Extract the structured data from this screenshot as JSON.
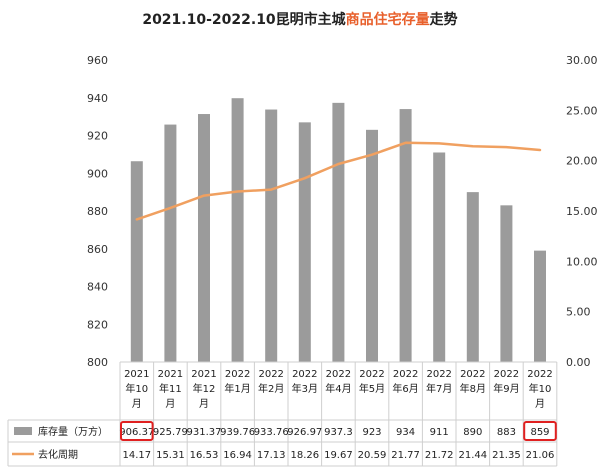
{
  "chart_data": {
    "type": "bar",
    "title_prefix": "2021.10-2022.10昆明市主城",
    "title_highlight": "商品住宅存量",
    "title_suffix": "走势",
    "categories": [
      [
        "2021",
        "年10",
        "月"
      ],
      [
        "2021",
        "年11",
        "月"
      ],
      [
        "2021",
        "年12",
        "月"
      ],
      [
        "2022",
        "年1月"
      ],
      [
        "2022",
        "年2月"
      ],
      [
        "2022",
        "年3月"
      ],
      [
        "2022",
        "年4月"
      ],
      [
        "2022",
        "年5月"
      ],
      [
        "2022",
        "年6月"
      ],
      [
        "2022",
        "年7月"
      ],
      [
        "2022",
        "年8月"
      ],
      [
        "2022",
        "年9月"
      ],
      [
        "2022",
        "年10",
        "月"
      ]
    ],
    "series": [
      {
        "name": "库存量（万方）",
        "kind": "bar",
        "axis": "left",
        "color": "#9b9b9b",
        "values": [
          906.37,
          925.79,
          931.37,
          939.76,
          933.76,
          926.97,
          937.3,
          923,
          934,
          911,
          890,
          883,
          859
        ],
        "labels": [
          "906.37",
          "925.79",
          "931.37",
          "939.76",
          "933.76",
          "926.97",
          "937.3",
          "923",
          "934",
          "911",
          "890",
          "883",
          "859"
        ]
      },
      {
        "name": "去化周期",
        "kind": "line",
        "axis": "right",
        "color": "#f0a060",
        "values": [
          14.17,
          15.31,
          16.53,
          16.94,
          17.13,
          18.26,
          19.67,
          20.59,
          21.77,
          21.72,
          21.44,
          21.35,
          21.06
        ],
        "labels": [
          "14.17",
          "15.31",
          "16.53",
          "16.94",
          "17.13",
          "18.26",
          "19.67",
          "20.59",
          "21.77",
          "21.72",
          "21.44",
          "21.35",
          "21.06"
        ]
      }
    ],
    "y_left": {
      "min": 800,
      "max": 960,
      "step": 20,
      "ticks": [
        "800",
        "820",
        "840",
        "860",
        "880",
        "900",
        "920",
        "940",
        "960"
      ]
    },
    "y_right": {
      "min": 0,
      "max": 30,
      "step": 5,
      "ticks": [
        "0.00",
        "5.00",
        "10.00",
        "15.00",
        "20.00",
        "25.00",
        "30.00"
      ]
    },
    "highlight_color": "#e02020",
    "highlight_indices": [
      0,
      12
    ]
  }
}
